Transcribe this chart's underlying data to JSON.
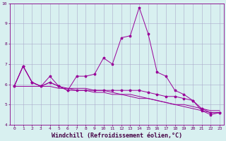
{
  "xlabel": "Windchill (Refroidissement éolien,°C)",
  "x": [
    0,
    1,
    2,
    3,
    4,
    5,
    6,
    7,
    8,
    9,
    10,
    11,
    12,
    13,
    14,
    15,
    16,
    17,
    18,
    19,
    20,
    21,
    22,
    23
  ],
  "line1": [
    5.9,
    6.9,
    6.1,
    5.9,
    6.4,
    5.9,
    5.7,
    6.4,
    6.4,
    6.5,
    7.3,
    7.0,
    8.3,
    8.4,
    9.8,
    8.5,
    6.6,
    6.4,
    5.7,
    5.5,
    5.2,
    4.7,
    4.5,
    4.6
  ],
  "line2": [
    5.9,
    6.9,
    6.1,
    5.9,
    6.1,
    5.9,
    5.7,
    5.7,
    5.7,
    5.7,
    5.7,
    5.7,
    5.7,
    5.7,
    5.7,
    5.6,
    5.5,
    5.4,
    5.4,
    5.3,
    5.2,
    4.8,
    4.6,
    4.6
  ],
  "line3": [
    5.9,
    6.9,
    6.1,
    5.9,
    6.1,
    5.9,
    5.8,
    5.8,
    5.8,
    5.7,
    5.7,
    5.6,
    5.5,
    5.5,
    5.4,
    5.3,
    5.2,
    5.1,
    5.0,
    5.0,
    4.9,
    4.8,
    4.7,
    4.7
  ],
  "line4": [
    5.9,
    5.9,
    5.9,
    5.9,
    5.9,
    5.8,
    5.8,
    5.7,
    5.7,
    5.6,
    5.6,
    5.5,
    5.5,
    5.4,
    5.3,
    5.3,
    5.2,
    5.1,
    5.0,
    4.9,
    4.8,
    4.7,
    4.6,
    4.6
  ],
  "line_color": "#990099",
  "bg_color": "#d8f0f0",
  "grid_color": "#aaaacc",
  "ylim": [
    4,
    10
  ],
  "xlim": [
    -0.5,
    23.5
  ],
  "yticks": [
    4,
    5,
    6,
    7,
    8,
    9,
    10
  ],
  "xticks": [
    0,
    1,
    2,
    3,
    4,
    5,
    6,
    7,
    8,
    9,
    10,
    11,
    12,
    13,
    14,
    15,
    16,
    17,
    18,
    19,
    20,
    21,
    22,
    23
  ],
  "tick_fontsize": 4.5,
  "xlabel_fontsize": 6.0,
  "marker": "*",
  "markersize": 2.5,
  "linewidth": 0.7
}
